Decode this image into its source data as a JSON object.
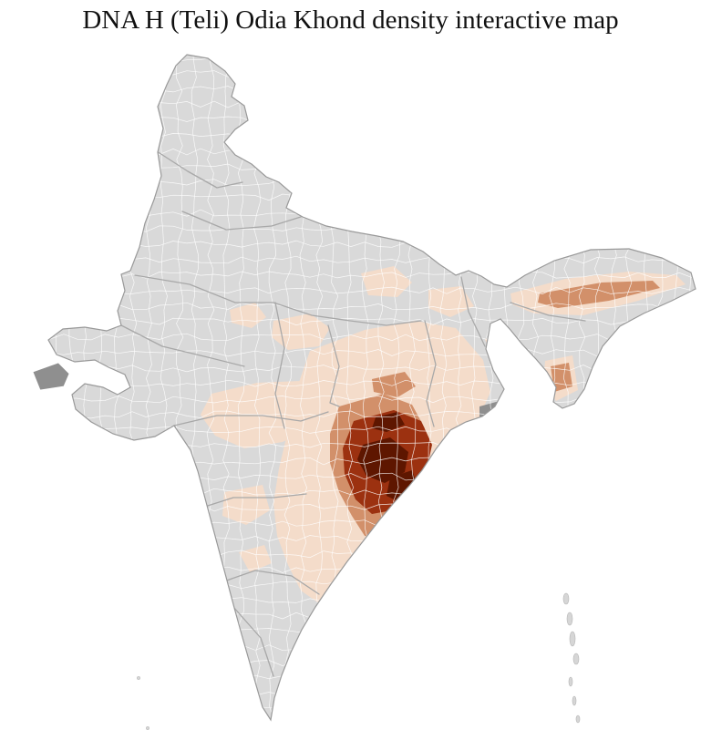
{
  "title": "DNA H (Teli) Odia Khond density interactive map",
  "map": {
    "type": "choropleth",
    "subject": "district-level density map of India",
    "density_levels": [
      "none",
      "low",
      "medium",
      "high",
      "highest"
    ],
    "colors": {
      "none": "#d9d9d9",
      "low": "#f4dcca",
      "medium": "#d2906a",
      "high": "#9c3110",
      "highest": "#5e1600",
      "dark_region": "#8f8f8f",
      "island": "#d6d6d6",
      "district_border": "#ffffff",
      "state_border": "#a8a8a8",
      "country_border": "#999999"
    },
    "clusters": [
      {
        "location": "east-central district cluster (dark core)",
        "level": "highest"
      },
      {
        "location": "districts surrounding the dark core",
        "level": "high"
      },
      {
        "location": "ring west of core and northeastern valley band",
        "level": "medium"
      },
      {
        "location": "broad central-eastern belt and northeast districts",
        "level": "low"
      },
      {
        "location": "remainder of the country",
        "level": "none"
      }
    ]
  }
}
